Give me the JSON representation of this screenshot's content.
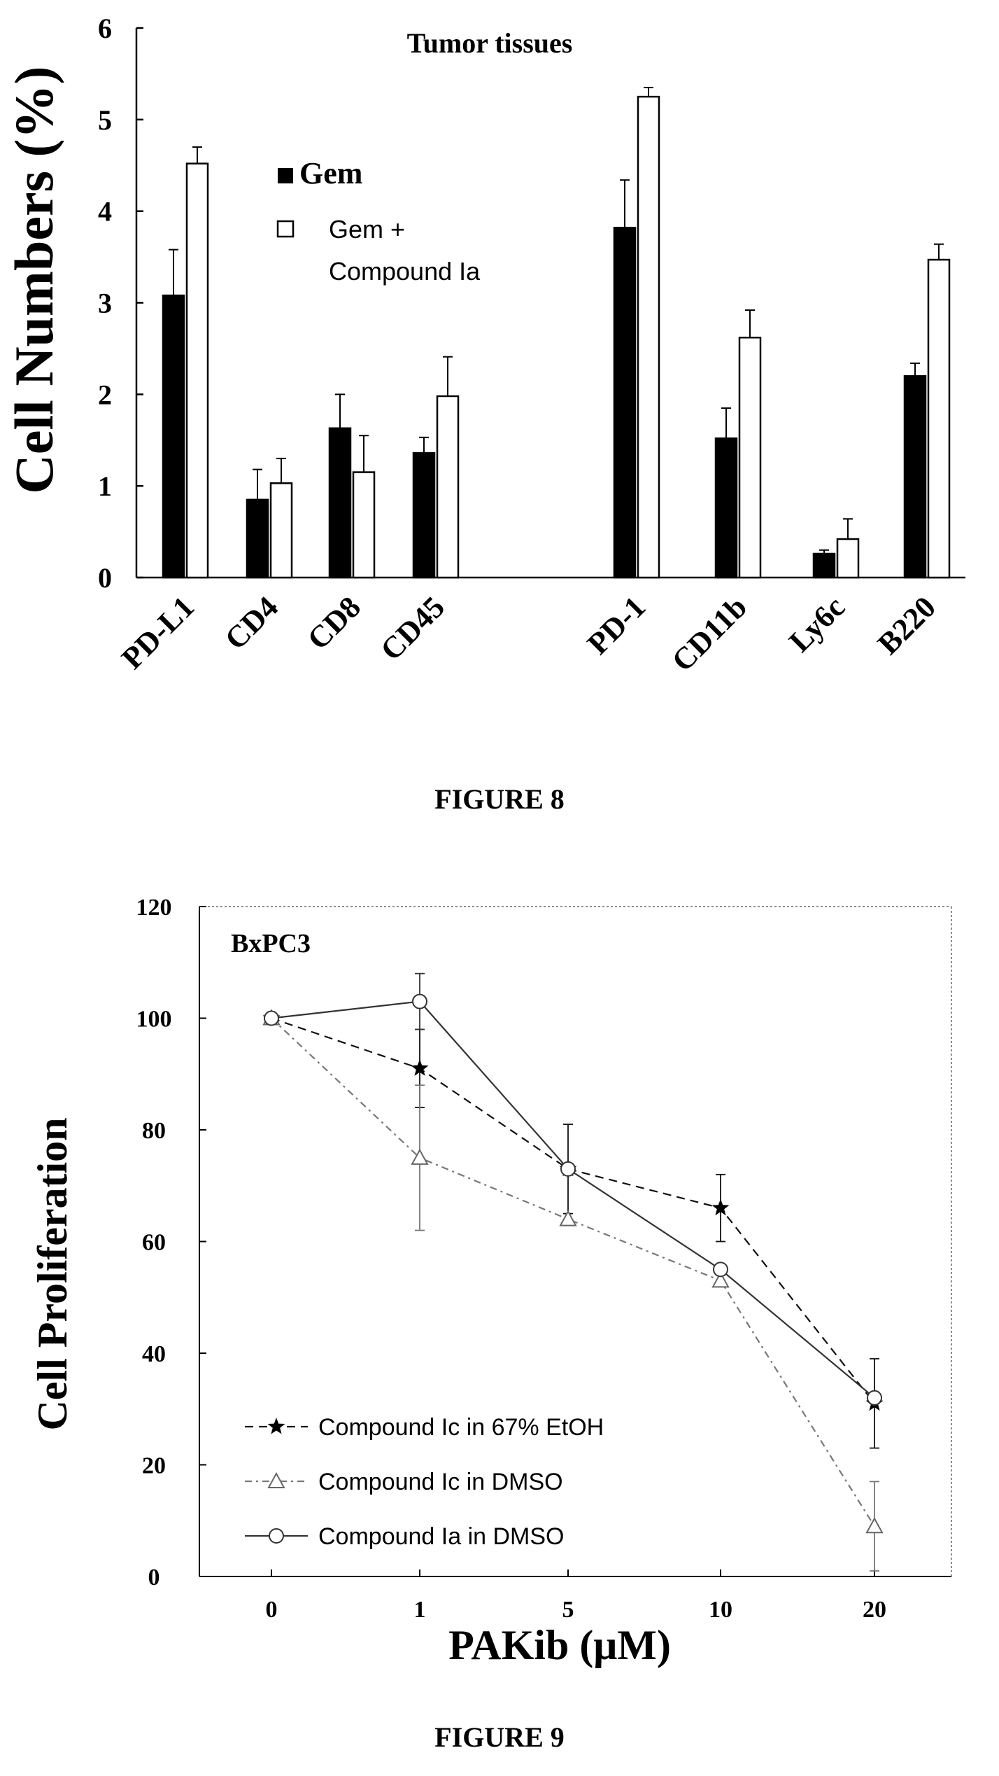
{
  "chart_data": [
    {
      "type": "bar",
      "title": "Tumor tissues",
      "ylabel": "Cell Numbers (%)",
      "xlabel": "",
      "ylim": [
        0,
        6
      ],
      "yticks": [
        "0",
        "1",
        "2",
        "3",
        "4",
        "5",
        "6"
      ],
      "grid": false,
      "legend_position": "upper-left",
      "categories": [
        "PD-L1",
        "CD4",
        "CD8",
        "CD45",
        "PD-1",
        "CD11b",
        "Ly6c",
        "B220"
      ],
      "series": [
        {
          "name": "Gem",
          "color": "#000000",
          "values": [
            3.08,
            0.85,
            1.63,
            1.36,
            3.82,
            1.52,
            0.26,
            2.2
          ],
          "errors": [
            0.5,
            0.33,
            0.37,
            0.17,
            0.52,
            0.33,
            0.04,
            0.14
          ]
        },
        {
          "name": "Gem + Compound Ia",
          "color": "#ffffff",
          "values": [
            4.52,
            1.03,
            1.15,
            1.98,
            5.25,
            2.62,
            0.42,
            3.47
          ],
          "errors": [
            0.18,
            0.27,
            0.4,
            0.43,
            0.1,
            0.3,
            0.22,
            0.17
          ]
        }
      ],
      "legend": {
        "gem": "Gem",
        "combo_line1": "Gem +",
        "combo_line2": "Compound Ia"
      },
      "caption": "FIGURE 8"
    },
    {
      "type": "line",
      "title": "BxPC3",
      "xlabel": "PAKib (μM)",
      "ylabel": "Cell Proliferation",
      "ylim": [
        0,
        120
      ],
      "yticks": [
        "0",
        "20",
        "40",
        "60",
        "80",
        "100",
        "120"
      ],
      "grid": false,
      "legend_position": "lower-left",
      "x": [
        "0",
        "1",
        "5",
        "10",
        "20"
      ],
      "series": [
        {
          "name": "Compound Ic in 67% EtOH",
          "marker": "filled-star",
          "style": "dashed",
          "values": [
            100,
            91,
            73,
            66,
            31
          ],
          "errors": [
            0,
            7,
            8,
            6,
            8
          ]
        },
        {
          "name": "Compound Ic in DMSO",
          "marker": "open-triangle",
          "style": "dash-dot",
          "values": [
            100,
            75,
            64,
            53,
            9
          ],
          "errors": [
            0,
            13,
            0,
            0,
            8
          ]
        },
        {
          "name": "Compound Ia in DMSO",
          "marker": "open-circle",
          "style": "solid",
          "values": [
            100,
            103,
            73,
            55,
            32
          ],
          "errors": [
            0,
            5,
            0,
            0,
            0
          ]
        }
      ],
      "caption": "FIGURE 9"
    }
  ]
}
